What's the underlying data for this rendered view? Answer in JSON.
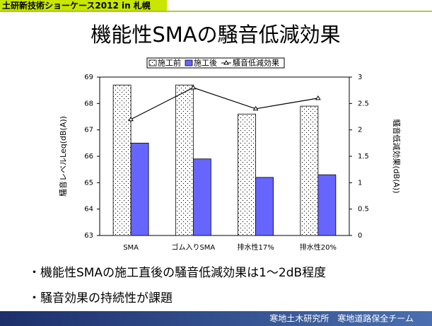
{
  "header": {
    "label": "土研新技術ショーケース2012 in 札幌"
  },
  "chart_data": {
    "type": "bar",
    "title": "機能性SMAの騒音低減効果",
    "categories": [
      "SMA",
      "ゴム入りSMA",
      "排水性17%",
      "排水性20%"
    ],
    "series": [
      {
        "name": "施工前",
        "color": "#ffffff",
        "values": [
          68.7,
          68.7,
          67.6,
          67.9
        ]
      },
      {
        "name": "施工後",
        "color": "#6666ff",
        "values": [
          66.5,
          65.9,
          65.2,
          65.3
        ]
      },
      {
        "name": "騒音低減効果",
        "type": "line",
        "axis": "y2",
        "color": "#000000",
        "values": [
          2.2,
          2.8,
          2.4,
          2.6
        ]
      }
    ],
    "ylabel": "騒音レベルLeq(dB(A))",
    "y2label": "騒音低減効果(dB(A))",
    "ylim": [
      63,
      69
    ],
    "yticks": [
      63,
      64,
      65,
      66,
      67,
      68,
      69
    ],
    "y2lim": [
      0,
      3
    ],
    "y2ticks": [
      0,
      0.5,
      1,
      1.5,
      2,
      2.5,
      3
    ],
    "legend": "top"
  },
  "notes": [
    "・機能性SMAの施工直後の騒音低減効果は1～2dB程度",
    "・騒音効果の持続性が課題"
  ],
  "footer": {
    "text": "寒地土木研究所　寒地道路保全チーム"
  }
}
